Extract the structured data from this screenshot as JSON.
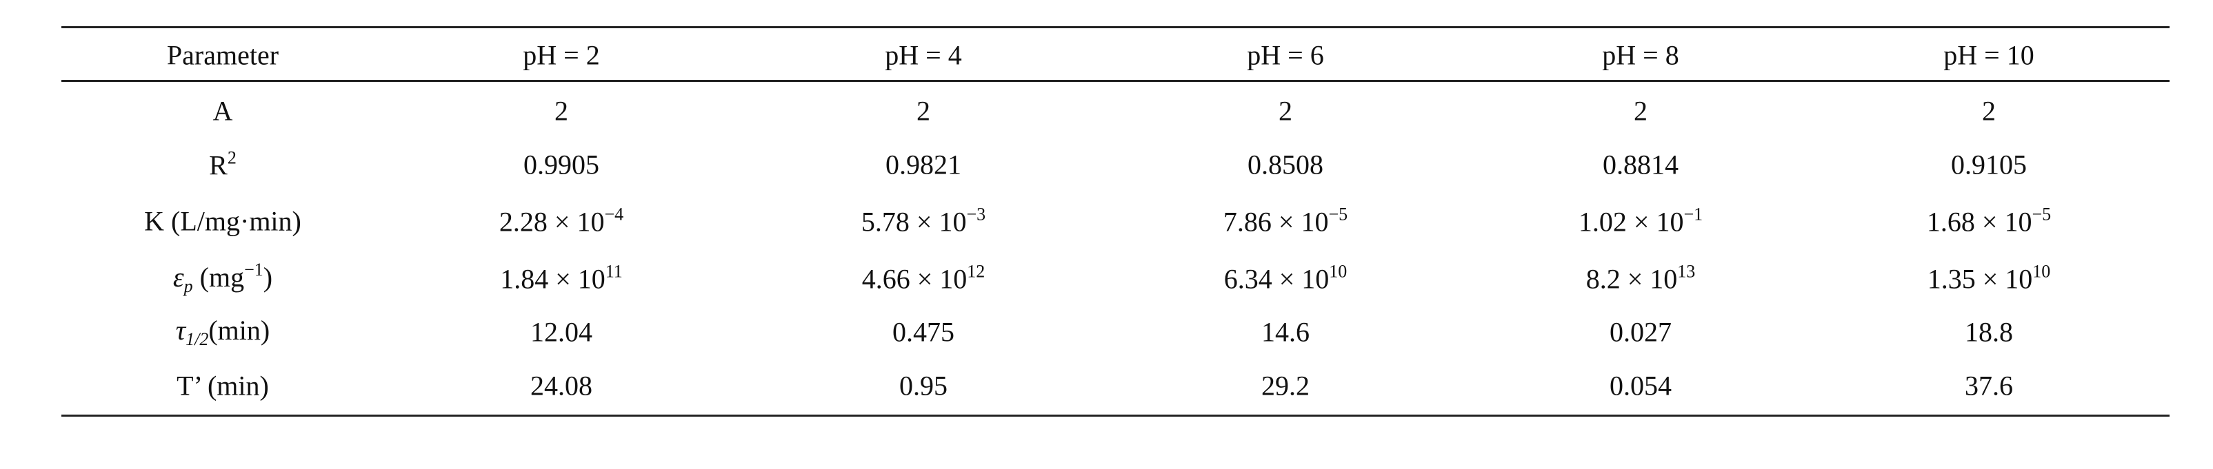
{
  "table": {
    "header": [
      "Parameter",
      "pH = 2",
      "pH = 4",
      "pH = 6",
      "pH = 8",
      "pH = 10"
    ],
    "rows": [
      [
        [
          {
            "text": "A"
          }
        ],
        [
          {
            "text": "2"
          }
        ],
        [
          {
            "text": "2"
          }
        ],
        [
          {
            "text": "2"
          }
        ],
        [
          {
            "text": "2"
          }
        ],
        [
          {
            "text": "2"
          }
        ]
      ],
      [
        [
          {
            "text": "R"
          },
          {
            "sup": "2"
          }
        ],
        [
          {
            "text": "0.9905"
          }
        ],
        [
          {
            "text": "0.9821"
          }
        ],
        [
          {
            "text": "0.8508"
          }
        ],
        [
          {
            "text": "0.8814"
          }
        ],
        [
          {
            "text": "0.9105"
          }
        ]
      ],
      [
        [
          {
            "text": "K (L/mg·min)"
          }
        ],
        [
          {
            "text": "2.28 × 10"
          },
          {
            "sup": "−4"
          }
        ],
        [
          {
            "text": "5.78 × 10"
          },
          {
            "sup": "−3"
          }
        ],
        [
          {
            "text": "7.86 × 10"
          },
          {
            "sup": "−5"
          }
        ],
        [
          {
            "text": "1.02 × 10"
          },
          {
            "sup": "−1"
          }
        ],
        [
          {
            "text": "1.68 × 10"
          },
          {
            "sup": "−5"
          }
        ]
      ],
      [
        [
          {
            "italic": "ε"
          },
          {
            "sub": "p"
          },
          {
            "text": " (mg"
          },
          {
            "sup": "−1"
          },
          {
            "text": ")"
          }
        ],
        [
          {
            "text": "1.84 × 10"
          },
          {
            "sup": "11"
          }
        ],
        [
          {
            "text": "4.66 × 10"
          },
          {
            "sup": "12"
          }
        ],
        [
          {
            "text": "6.34 × 10"
          },
          {
            "sup": "10"
          }
        ],
        [
          {
            "text": "8.2 × 10"
          },
          {
            "sup": "13"
          }
        ],
        [
          {
            "text": "1.35 × 10"
          },
          {
            "sup": "10"
          }
        ]
      ],
      [
        [
          {
            "italic": "τ"
          },
          {
            "sub": "1/2"
          },
          {
            "text": "(min)"
          }
        ],
        [
          {
            "text": "12.04"
          }
        ],
        [
          {
            "text": "0.475"
          }
        ],
        [
          {
            "text": "14.6"
          }
        ],
        [
          {
            "text": "0.027"
          }
        ],
        [
          {
            "text": "18.8"
          }
        ]
      ],
      [
        [
          {
            "text": "T’ (min)"
          }
        ],
        [
          {
            "text": "24.08"
          }
        ],
        [
          {
            "text": "0.95"
          }
        ],
        [
          {
            "text": "29.2"
          }
        ],
        [
          {
            "text": "0.054"
          }
        ],
        [
          {
            "text": "37.6"
          }
        ]
      ]
    ]
  }
}
